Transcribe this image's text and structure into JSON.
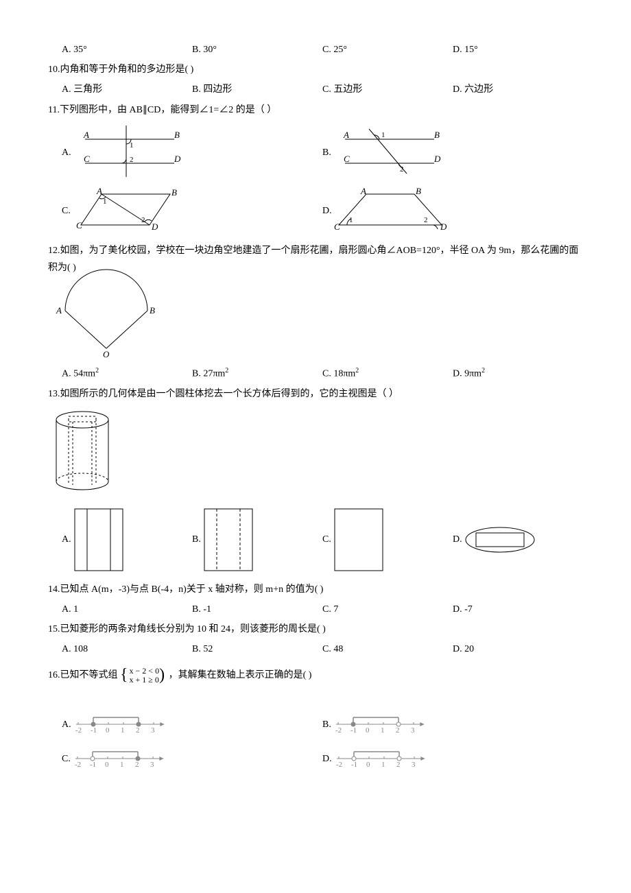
{
  "q9": {
    "options": [
      "A. 35°",
      "B. 30°",
      "C. 25°",
      "D. 15°"
    ]
  },
  "q10": {
    "stem": "10.内角和等于外角和的多边形是(    )",
    "options": [
      "A. 三角形",
      "B. 四边形",
      "C. 五边形",
      "D. 六边形"
    ]
  },
  "q11": {
    "stem": "11.下列图形中，由 AB∥CD，能得到∠1=∠2 的是（    ）",
    "labelA": "A.",
    "labelB": "B.",
    "labelC": "C.",
    "labelD": "D."
  },
  "q12": {
    "stem": "12.如图，为了美化校园，学校在一块边角空地建造了一个扇形花圃，扇形圆心角∠AOB=120°，半径 OA 为 9m，那么花圃的面积为(    )",
    "options": [
      "A. 54πm",
      "B. 27πm",
      "C. 18πm",
      "D. 9πm"
    ],
    "sup": "2"
  },
  "q13": {
    "stem": "13.如图所示的几何体是由一个圆柱体挖去一个长方体后得到的，它的主视图是（    ）",
    "labelA": "A.",
    "labelB": "B.",
    "labelC": "C.",
    "labelD": "D."
  },
  "q14": {
    "stem": "14.已知点 A(m，-3)与点 B(-4，n)关于 x 轴对称，则 m+n 的值为(    )",
    "options": [
      "A. 1",
      "B. -1",
      "C. 7",
      "D. -7"
    ]
  },
  "q15": {
    "stem": "15.已知菱形的两条对角线长分别为 10 和 24，则该菱形的周长是(    )",
    "options": [
      "A. 108",
      "B. 52",
      "C. 48",
      "D. 20"
    ]
  },
  "q16": {
    "stem_pre": "16.已知不等式组",
    "line1": "x − 2 < 0",
    "line2": "x + 1 ≥ 0",
    "stem_post": "，其解集在数轴上表示正确的是(    )",
    "labelA": "A.",
    "labelB": "B.",
    "labelC": "C.",
    "labelD": "D."
  },
  "diagrams": {
    "stroke": "#000000",
    "dash": "4,3",
    "numberline_color": "#888888",
    "numberline_labels": [
      "-2",
      "-1",
      "0",
      "1",
      "2",
      "3"
    ]
  }
}
